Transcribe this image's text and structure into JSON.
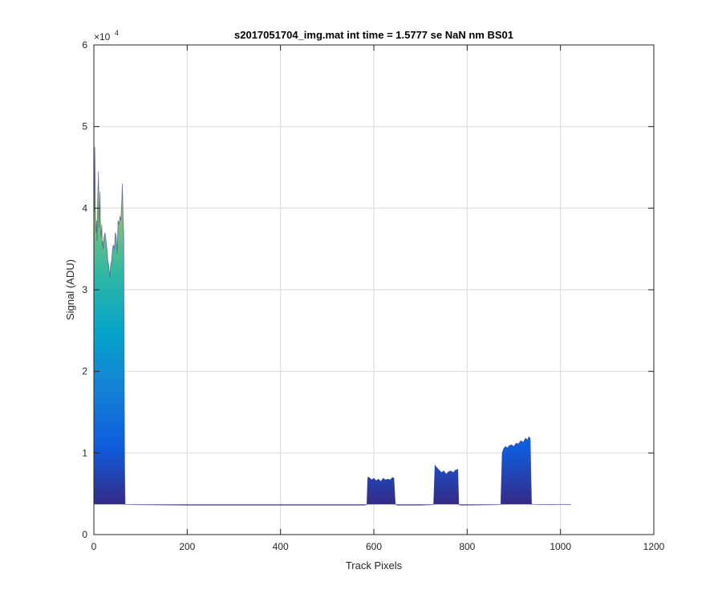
{
  "chart_data": {
    "type": "area",
    "title": "s2017051704_img.mat int time = 1.5777 se  NaN nm BS01",
    "xlabel": "Track Pixels",
    "ylabel": "Signal (ADU)",
    "xlim": [
      0,
      1200
    ],
    "ylim": [
      0,
      60000
    ],
    "xticks": [
      0,
      200,
      400,
      600,
      800,
      1000,
      1200
    ],
    "xtick_labels": [
      "0",
      "200",
      "400",
      "600",
      "800",
      "1000",
      "1200"
    ],
    "yticks": [
      0,
      10000,
      20000,
      30000,
      40000,
      50000,
      60000
    ],
    "ytick_labels": [
      "0",
      "1",
      "2",
      "3",
      "4",
      "5",
      "6"
    ],
    "y_exponent_base": "×10",
    "y_exponent_power": "4",
    "grid": true,
    "baseline": 3700,
    "colormap": [
      "#352a87",
      "#0f5cdd",
      "#1481d6",
      "#06a4ca",
      "#2eb7a4",
      "#87bf77",
      "#d1bb59",
      "#fec832",
      "#f9fb0e"
    ],
    "colormap_range": [
      3700,
      60000
    ],
    "series": [
      {
        "x": [
          0,
          1,
          2,
          3,
          4,
          5,
          6,
          7,
          8,
          9,
          10,
          11,
          12,
          13,
          14,
          15,
          16,
          17,
          18,
          19,
          20,
          22,
          24,
          26,
          28,
          30,
          32,
          34,
          36,
          38,
          40,
          42,
          44,
          46,
          48,
          50,
          52,
          54,
          56,
          58,
          60,
          61,
          62,
          63,
          64,
          65,
          66,
          67,
          68,
          70,
          100,
          200,
          300,
          400,
          500,
          580,
          585,
          587,
          590,
          595,
          600,
          605,
          610,
          615,
          620,
          625,
          630,
          635,
          640,
          643,
          646,
          650,
          700,
          725,
          728,
          731,
          735,
          740,
          745,
          750,
          755,
          760,
          765,
          770,
          775,
          780,
          782,
          785,
          790,
          860,
          872,
          875,
          878,
          882,
          886,
          890,
          895,
          900,
          905,
          910,
          915,
          920,
          925,
          930,
          932,
          935,
          938,
          940,
          980,
          1000,
          1022
        ],
        "y": [
          50000,
          39500,
          47500,
          42000,
          38000,
          37000,
          38500,
          36000,
          41000,
          42500,
          44500,
          37500,
          40000,
          42000,
          38500,
          36500,
          37000,
          38000,
          35500,
          36000,
          35000,
          36500,
          37000,
          36000,
          35000,
          33500,
          33000,
          31500,
          33000,
          33500,
          35000,
          35500,
          35000,
          37000,
          36500,
          34500,
          38500,
          38000,
          39000,
          38500,
          41000,
          43000,
          40500,
          38000,
          37000,
          20000,
          8000,
          3800,
          3700,
          3700,
          3650,
          3600,
          3600,
          3600,
          3600,
          3600,
          3700,
          7000,
          7000,
          6700,
          6900,
          6600,
          6800,
          6500,
          6900,
          6700,
          6800,
          6700,
          7000,
          6900,
          3700,
          3600,
          3600,
          3650,
          3700,
          8500,
          8200,
          7900,
          7600,
          7800,
          7400,
          7700,
          7800,
          7600,
          7900,
          8000,
          3700,
          3600,
          3600,
          3650,
          3700,
          10000,
          10500,
          10800,
          10600,
          10900,
          11000,
          10800,
          11200,
          11100,
          11500,
          11300,
          11800,
          11600,
          12000,
          11800,
          3800,
          3700,
          3650,
          3700,
          3650
        ]
      }
    ]
  }
}
